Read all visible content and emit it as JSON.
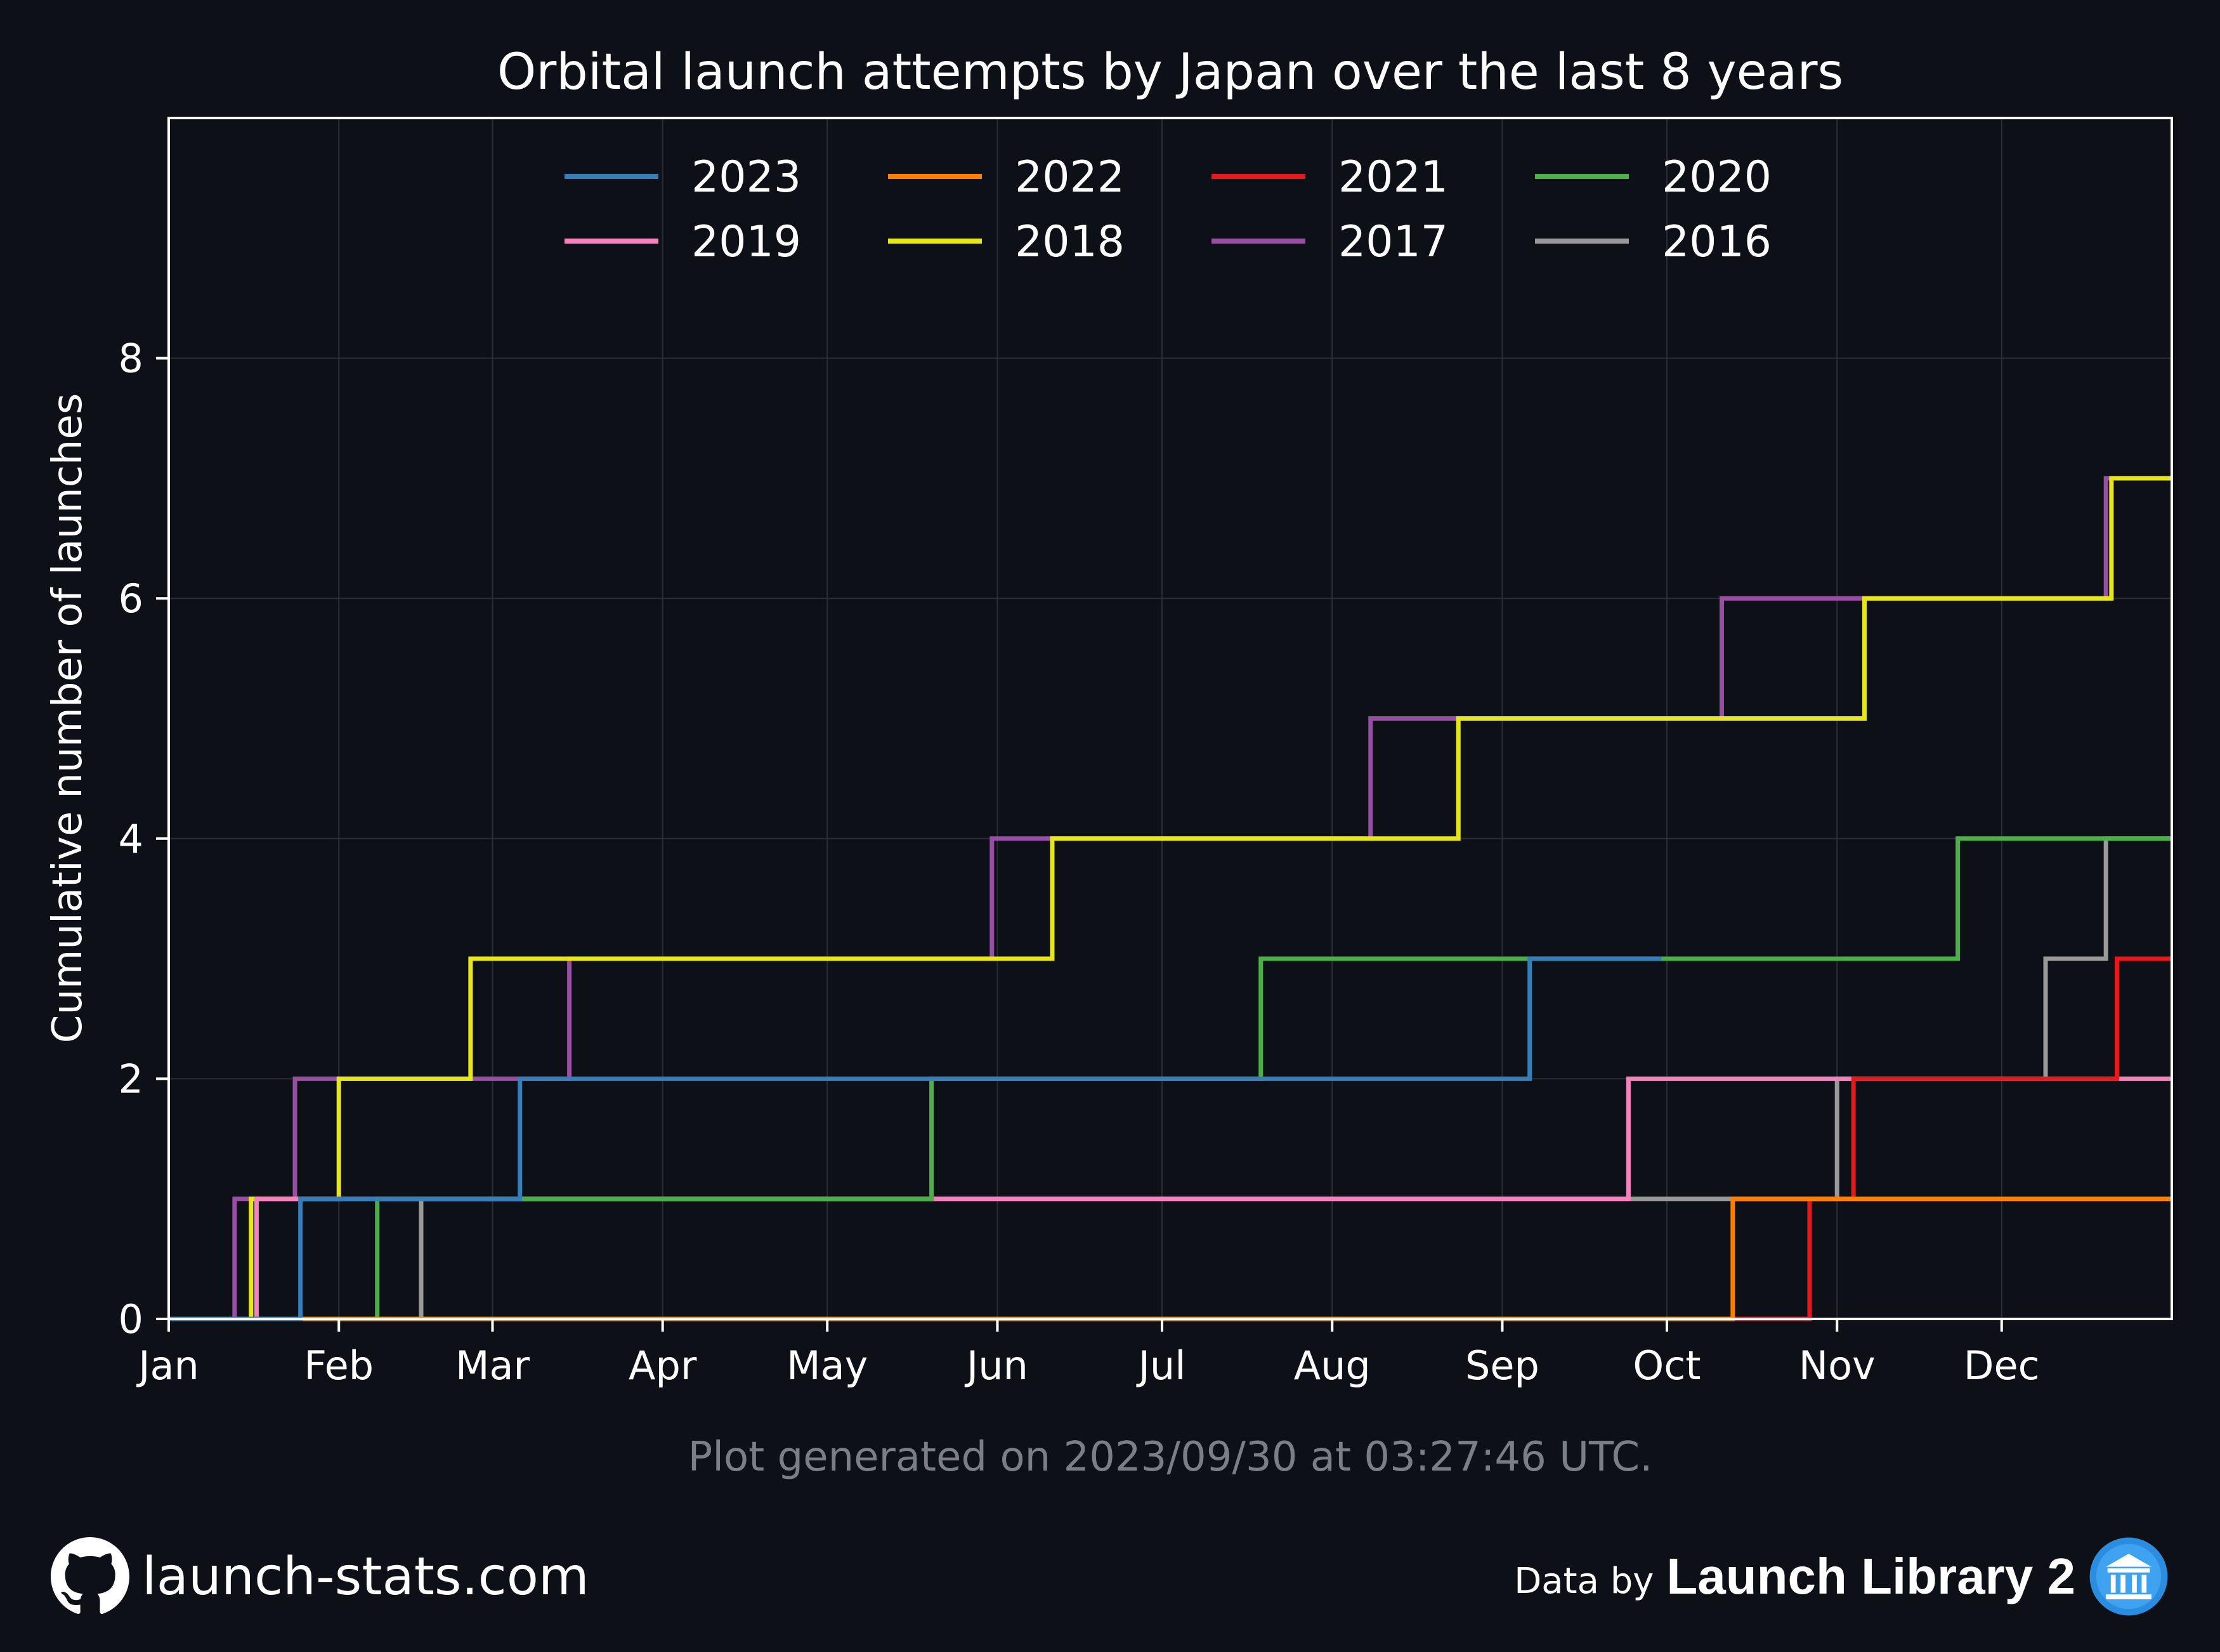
{
  "footer": {
    "generated": "Plot generated on 2023/09/30 at 03:27:46 UTC.",
    "site": "launch-stats.com",
    "data_by": "Data by",
    "provider": "Launch Library 2",
    "github_icon": "github-icon",
    "provider_icon": "launch-library-icon"
  },
  "colors": {
    "background": "#0d1117",
    "axes": "#ffffff",
    "grid": "#2a2f36",
    "footnote": "#7a7f86"
  },
  "chart_data": {
    "type": "line",
    "step": true,
    "title": "Orbital launch attempts by Japan over the last 8 years",
    "xlabel": "",
    "ylabel": "Cumulative number of launches",
    "x_unit": "day of year",
    "xlim": [
      1,
      366
    ],
    "ylim": [
      0,
      10
    ],
    "yticks": [
      0,
      2,
      4,
      6,
      8
    ],
    "month_ticks": [
      {
        "label": "Jan",
        "day": 1
      },
      {
        "label": "Feb",
        "day": 32
      },
      {
        "label": "Mar",
        "day": 60
      },
      {
        "label": "Apr",
        "day": 91
      },
      {
        "label": "May",
        "day": 121
      },
      {
        "label": "Jun",
        "day": 152
      },
      {
        "label": "Jul",
        "day": 182
      },
      {
        "label": "Aug",
        "day": 213
      },
      {
        "label": "Sep",
        "day": 244
      },
      {
        "label": "Oct",
        "day": 274
      },
      {
        "label": "Nov",
        "day": 305
      },
      {
        "label": "Dec",
        "day": 335
      }
    ],
    "grid": true,
    "legend_position": "top-center",
    "legend_columns": 4,
    "series": [
      {
        "name": "2023",
        "color": "#377eb8",
        "end_day": 273,
        "launch_days": [
          25,
          65,
          249
        ]
      },
      {
        "name": "2022",
        "color": "#ff7f00",
        "end_day": 366,
        "launch_days": [
          286
        ]
      },
      {
        "name": "2021",
        "color": "#e41a1c",
        "end_day": 366,
        "launch_days": [
          300,
          308,
          356
        ]
      },
      {
        "name": "2020",
        "color": "#4daf4a",
        "end_day": 366,
        "launch_days": [
          39,
          140,
          200,
          327
        ]
      },
      {
        "name": "2019",
        "color": "#f781bf",
        "end_day": 366,
        "launch_days": [
          17,
          267
        ]
      },
      {
        "name": "2018",
        "color": "#e6e619",
        "end_day": 366,
        "launch_days": [
          16,
          32,
          56,
          162,
          236,
          310,
          355
        ]
      },
      {
        "name": "2017",
        "color": "#984ea3",
        "end_day": 366,
        "launch_days": [
          13,
          24,
          74,
          151,
          220,
          284,
          354
        ]
      },
      {
        "name": "2016",
        "color": "#999999",
        "end_day": 366,
        "launch_days": [
          47,
          305,
          343,
          354
        ]
      }
    ]
  }
}
